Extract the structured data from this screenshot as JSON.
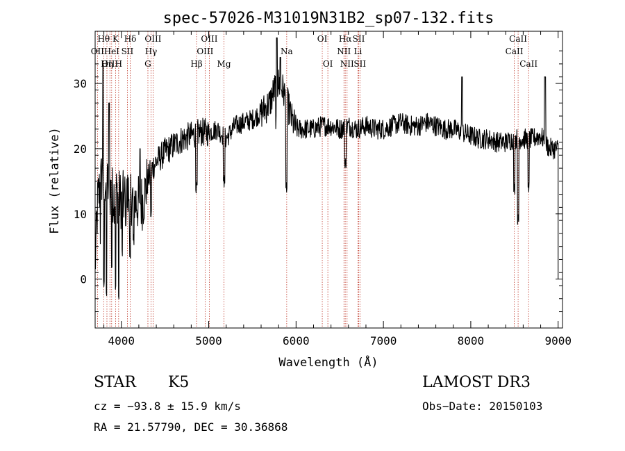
{
  "chart_data": {
    "type": "line",
    "title": "spec-57026-M31019N31B2_sp07-132.fits",
    "xlabel": "Wavelength (Å)",
    "ylabel": "Flux (relative)",
    "xlim": [
      3700,
      9050
    ],
    "ylim": [
      -7.5,
      38
    ],
    "xticks": [
      4000,
      5000,
      6000,
      7000,
      8000,
      9000
    ],
    "yticks": [
      0,
      10,
      20,
      30
    ],
    "grid": false,
    "anchors": [
      [
        3700,
        2
      ],
      [
        3730,
        12
      ],
      [
        3780,
        16
      ],
      [
        3850,
        14
      ],
      [
        3900,
        13
      ],
      [
        3950,
        13
      ],
      [
        4000,
        12
      ],
      [
        4050,
        12.5
      ],
      [
        4100,
        13
      ],
      [
        4150,
        12
      ],
      [
        4200,
        11.5
      ],
      [
        4250,
        12
      ],
      [
        4300,
        15
      ],
      [
        4350,
        17
      ],
      [
        4400,
        18
      ],
      [
        4500,
        19.5
      ],
      [
        4600,
        20.5
      ],
      [
        4700,
        21.5
      ],
      [
        4800,
        22
      ],
      [
        4900,
        22.5
      ],
      [
        5000,
        22.5
      ],
      [
        5100,
        23
      ],
      [
        5200,
        21.5
      ],
      [
        5300,
        23.5
      ],
      [
        5400,
        24
      ],
      [
        5500,
        24.5
      ],
      [
        5600,
        25.5
      ],
      [
        5700,
        27
      ],
      [
        5750,
        29
      ],
      [
        5800,
        30
      ],
      [
        5850,
        29
      ],
      [
        5900,
        27
      ],
      [
        5950,
        24.5
      ],
      [
        6000,
        23
      ],
      [
        6100,
        23
      ],
      [
        6200,
        23
      ],
      [
        6300,
        23.5
      ],
      [
        6400,
        23.5
      ],
      [
        6500,
        23
      ],
      [
        6600,
        23.5
      ],
      [
        6700,
        23
      ],
      [
        6800,
        23.5
      ],
      [
        6900,
        23
      ],
      [
        7000,
        23
      ],
      [
        7100,
        23.5
      ],
      [
        7200,
        24
      ],
      [
        7300,
        23.5
      ],
      [
        7400,
        23.5
      ],
      [
        7500,
        24
      ],
      [
        7600,
        23.5
      ],
      [
        7700,
        23
      ],
      [
        7800,
        23
      ],
      [
        7900,
        22.5
      ],
      [
        8000,
        22
      ],
      [
        8100,
        21.5
      ],
      [
        8200,
        21.5
      ],
      [
        8300,
        21
      ],
      [
        8400,
        21
      ],
      [
        8500,
        21.5
      ],
      [
        8600,
        21.5
      ],
      [
        8700,
        21.5
      ],
      [
        8800,
        22
      ],
      [
        8900,
        20
      ],
      [
        9000,
        20
      ]
    ],
    "dips": [
      [
        3760,
        6,
        3
      ],
      [
        3800,
        -1,
        4
      ],
      [
        3830,
        -2,
        3
      ],
      [
        3890,
        2,
        3
      ],
      [
        3935,
        -1,
        4
      ],
      [
        3970,
        -3,
        4
      ],
      [
        4010,
        4,
        3
      ],
      [
        4050,
        9,
        5
      ],
      [
        4100,
        3,
        4
      ],
      [
        4140,
        6,
        5
      ],
      [
        4340,
        10,
        6
      ],
      [
        4860,
        14,
        8
      ],
      [
        5175,
        15,
        10
      ],
      [
        5890,
        14,
        8
      ],
      [
        5770,
        24,
        5
      ],
      [
        6563,
        18,
        10
      ],
      [
        8498,
        14,
        8
      ],
      [
        8542,
        9,
        8
      ],
      [
        8662,
        14,
        8
      ]
    ],
    "spikes": [
      [
        3790,
        33,
        4
      ],
      [
        3860,
        27,
        4
      ],
      [
        4215,
        20,
        4
      ],
      [
        5780,
        37,
        4
      ],
      [
        5820,
        34,
        4
      ],
      [
        7900,
        31,
        6
      ],
      [
        8850,
        31,
        6
      ]
    ],
    "lines": [
      {
        "name": "Hθ",
        "w": 3798,
        "row": 0
      },
      {
        "name": "OII",
        "w": 3727,
        "row": 1
      },
      {
        "name": "OIII",
        "w": 3869,
        "row": 2
      },
      {
        "name": "K",
        "w": 3934,
        "row": 0
      },
      {
        "name": "H",
        "w": 3969,
        "row": 2
      },
      {
        "name": "Hη",
        "w": 3835,
        "row": 2
      },
      {
        "name": "HeI",
        "w": 3889,
        "row": 1
      },
      {
        "name": "SII",
        "w": 4069,
        "row": 1
      },
      {
        "name": "Hδ",
        "w": 4102,
        "row": 0
      },
      {
        "name": "OIII",
        "w": 4363,
        "row": 0
      },
      {
        "name": "Hγ",
        "w": 4340,
        "row": 1
      },
      {
        "name": "G",
        "w": 4304,
        "row": 2
      },
      {
        "name": "Hβ",
        "w": 4861,
        "row": 2
      },
      {
        "name": "OIII",
        "w": 4959,
        "row": 1
      },
      {
        "name": "OIII",
        "w": 5007,
        "row": 0
      },
      {
        "name": "Mg",
        "w": 5175,
        "row": 2
      },
      {
        "name": "Na",
        "w": 5893,
        "row": 1
      },
      {
        "name": "OI",
        "w": 6300,
        "row": 0
      },
      {
        "name": "OI",
        "w": 6364,
        "row": 2
      },
      {
        "name": "Hα",
        "w": 6563,
        "row": 0
      },
      {
        "name": "NII",
        "w": 6548,
        "row": 1
      },
      {
        "name": "NII",
        "w": 6584,
        "row": 2
      },
      {
        "name": "SII",
        "w": 6717,
        "row": 0
      },
      {
        "name": "Li",
        "w": 6708,
        "row": 1
      },
      {
        "name": "SII",
        "w": 6731,
        "row": 2
      },
      {
        "name": "CaII",
        "w": 8498,
        "row": 1
      },
      {
        "name": "CaII",
        "w": 8542,
        "row": 0
      },
      {
        "name": "CaII",
        "w": 8662,
        "row": 2
      }
    ]
  },
  "info": {
    "class": "STAR",
    "subclass": "K5",
    "survey": "LAMOST DR3",
    "cz": "cz = −93.8 ± 15.9 km/s",
    "obs_date": "Obs−Date: 20150103",
    "coords": "RA =  21.57790, DEC =  30.36868"
  }
}
